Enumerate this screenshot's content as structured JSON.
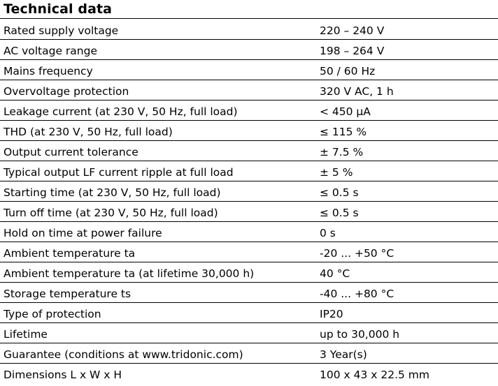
{
  "title": "Technical data",
  "rows": [
    {
      "label": "Rated supply voltage",
      "value": "220 – 240 V"
    },
    {
      "label": "AC voltage range",
      "value": "198 – 264 V"
    },
    {
      "label": "Mains frequency",
      "value": "50 / 60 Hz"
    },
    {
      "label": "Overvoltage protection",
      "value": "320 V AC, 1 h"
    },
    {
      "label": "Leakage current (at 230 V, 50 Hz, full load)",
      "value": "< 450 µA"
    },
    {
      "label": "THD (at 230 V, 50 Hz, full load)",
      "value": "≤ 115 %"
    },
    {
      "label": "Output current tolerance",
      "value": "± 7.5 %"
    },
    {
      "label": "Typical output LF current ripple at full load",
      "value": "± 5 %"
    },
    {
      "label": "Starting time (at 230 V, 50 Hz, full load)",
      "value": "≤ 0.5 s"
    },
    {
      "label": "Turn off time (at 230 V, 50 Hz, full load)",
      "value": "≤ 0.5 s"
    },
    {
      "label": "Hold on time at power failure",
      "value": "0 s"
    },
    {
      "label": "Ambient temperature ta",
      "value": "-20 ... +50 °C"
    },
    {
      "label": "Ambient temperature ta (at lifetime 30,000 h)",
      "value": "40 °C"
    },
    {
      "label": "Storage temperature ts",
      "value": "-40 ... +80 °C"
    },
    {
      "label": "Type of protection",
      "value": "IP20"
    },
    {
      "label": "Lifetime",
      "value": "up to 30,000 h"
    },
    {
      "label": "Guarantee (conditions at www.tridonic.com)",
      "value": "3 Year(s)"
    },
    {
      "label": "Dimensions L x W x H",
      "value": "100 x 43 x 22.5 mm"
    }
  ]
}
